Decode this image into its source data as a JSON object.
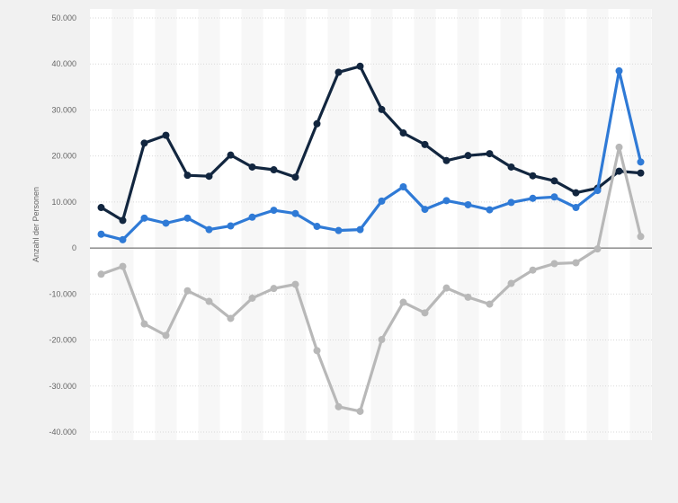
{
  "chart_data": {
    "type": "line",
    "title": "",
    "xlabel": "",
    "ylabel": "Anzahl der Personen",
    "ylim": [
      -40000,
      50000
    ],
    "yticks": [
      50000,
      40000,
      30000,
      20000,
      10000,
      0,
      -10000,
      -20000,
      -30000,
      -40000
    ],
    "ytick_labels": [
      "50.000",
      "40.000",
      "30.000",
      "20.000",
      "10.000",
      "0",
      "-10.000",
      "-20.000",
      "-30.000",
      "-40.000"
    ],
    "point_count": 26,
    "grid": true,
    "legend": "none",
    "colors": {
      "page_background": "#f1f1f1",
      "plot_background": "#ffffff",
      "alternate_band": "#f7f7f7",
      "gridline": "#d9d9d9",
      "zero_line": "#555555"
    },
    "series": [
      {
        "color": "#12263f",
        "values": [
          8800,
          6000,
          22800,
          24500,
          15800,
          15600,
          20200,
          17600,
          17000,
          15400,
          27000,
          38200,
          39500,
          30100,
          25000,
          22500,
          19000,
          20100,
          20500,
          17600,
          15700,
          14600,
          12000,
          13000,
          16700,
          16300
        ]
      },
      {
        "color": "#2f7ad6",
        "values": [
          3000,
          1800,
          6500,
          5400,
          6500,
          4000,
          4800,
          6700,
          8200,
          7500,
          4700,
          3800,
          4000,
          10200,
          13300,
          8400,
          10300,
          9400,
          8300,
          9900,
          10800,
          11100,
          8800,
          12500,
          38500,
          18700
        ]
      },
      {
        "color": "#b8b8b8",
        "values": [
          -5700,
          -4000,
          -16500,
          -19000,
          -9300,
          -11600,
          -15300,
          -10900,
          -8800,
          -7900,
          -22300,
          -34500,
          -35500,
          -19900,
          -11800,
          -14100,
          -8700,
          -10700,
          -12200,
          -7700,
          -4800,
          -3400,
          -3200,
          -200,
          21900,
          2500
        ]
      }
    ]
  }
}
